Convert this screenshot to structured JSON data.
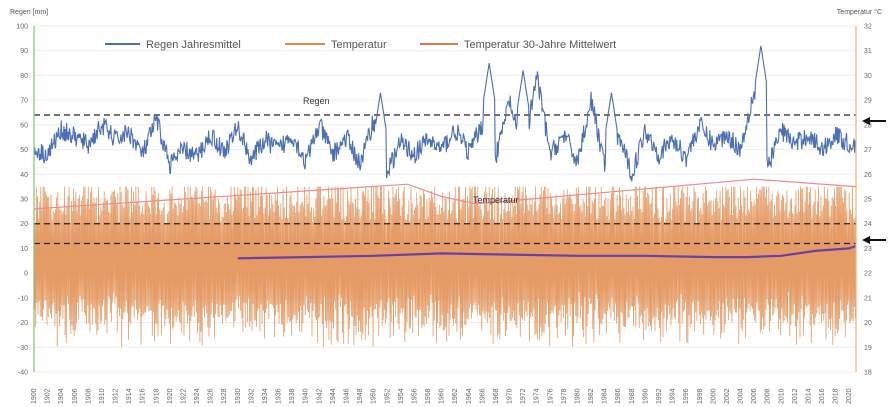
{
  "chart_data": {
    "type": "line",
    "left_axis_title": "Regen [mm]",
    "right_axis_title": "Temperatur °C",
    "left_ticks": [
      "100",
      "90",
      "80",
      "70",
      "60",
      "50",
      "40",
      "30",
      "20",
      "10",
      "0",
      "-10",
      "-20",
      "-30",
      "-40"
    ],
    "right_ticks": [
      "32",
      "31",
      "30",
      "29",
      "28",
      "27",
      "26",
      "25",
      "24",
      "23",
      "22",
      "21",
      "20",
      "19",
      "18"
    ],
    "left_range": [
      -40,
      100
    ],
    "right_range": [
      18,
      32
    ],
    "x_range": [
      1900,
      2021
    ],
    "x_tick_labels": [
      "1900",
      "1902",
      "1904",
      "1906",
      "1908",
      "1910",
      "1912",
      "1914",
      "1916",
      "1918",
      "1920",
      "1922",
      "1924",
      "1926",
      "1928",
      "1930",
      "1932",
      "1934",
      "1936",
      "1938",
      "1940",
      "1942",
      "1944",
      "1946",
      "1948",
      "1950",
      "1952",
      "1954",
      "1956",
      "1958",
      "1960",
      "1962",
      "1964",
      "1966",
      "1968",
      "1970",
      "1972",
      "1974",
      "1976",
      "1978",
      "1980",
      "1982",
      "1984",
      "1986",
      "1988",
      "1990",
      "1992",
      "1994",
      "1996",
      "1998",
      "2000",
      "2002",
      "2004",
      "2006",
      "2008",
      "2010",
      "2012",
      "2014",
      "2016",
      "2018",
      "2020"
    ],
    "legend": [
      {
        "label": "Regen Jahresmittel",
        "color": "#4a6fb5"
      },
      {
        "label": "Temperatur",
        "color": "#e08a4a"
      },
      {
        "label": "Temperatur 30-Jahre Mittelwert",
        "color": "#e0744a"
      }
    ],
    "annotations": {
      "rain_label": "Regen",
      "temp_label": "Temperatur"
    },
    "reference_lines": {
      "rain_mean": 64,
      "temp_mean": 20,
      "lower_dashed": 12
    },
    "rain_keypoints": {
      "x": [
        1900,
        1902,
        1904,
        1906,
        1908,
        1910,
        1912,
        1914,
        1916,
        1918,
        1920,
        1922,
        1924,
        1926,
        1928,
        1930,
        1932,
        1934,
        1936,
        1938,
        1940,
        1942,
        1944,
        1946,
        1948,
        1950,
        1952,
        1954,
        1956,
        1958,
        1960,
        1962,
        1964,
        1966,
        1968,
        1970,
        1972,
        1974,
        1976,
        1978,
        1980,
        1982,
        1984,
        1986,
        1988,
        1990,
        1992,
        1994,
        1996,
        1998,
        2000,
        2002,
        2004,
        2006,
        2008,
        2010,
        2012,
        2014,
        2016,
        2018,
        2020
      ],
      "y": [
        50,
        48,
        58,
        55,
        52,
        60,
        54,
        57,
        48,
        62,
        44,
        50,
        47,
        56,
        49,
        59,
        46,
        54,
        50,
        56,
        45,
        60,
        48,
        55,
        44,
        62,
        41,
        53,
        48,
        54,
        50,
        58,
        49,
        60,
        47,
        70,
        46,
        80,
        48,
        56,
        45,
        70,
        44,
        56,
        40,
        58,
        48,
        54,
        47,
        60,
        52,
        56,
        50,
        74,
        43,
        58,
        52,
        56,
        50,
        56,
        52
      ]
    },
    "rain_peaks": [
      {
        "x": 1951,
        "y": 73
      },
      {
        "x": 1967,
        "y": 85
      },
      {
        "x": 1972,
        "y": 82
      },
      {
        "x": 1985,
        "y": 73
      },
      {
        "x": 2007,
        "y": 92
      }
    ],
    "temp_envelope": {
      "x": [
        1900,
        1955,
        1960,
        1965,
        2006,
        2021
      ],
      "y": [
        26,
        36,
        31,
        28,
        38,
        35
      ]
    },
    "temp_30y_mean": {
      "x": [
        1930,
        1940,
        1950,
        1960,
        1970,
        1980,
        1990,
        2000,
        2005,
        2010,
        2015,
        2020,
        2021
      ],
      "y": [
        6,
        6.5,
        7,
        8,
        7.5,
        7,
        7,
        6.5,
        6.5,
        7,
        9,
        10,
        11
      ]
    },
    "temp_band": {
      "min": -30,
      "max": 35,
      "center": 6
    }
  }
}
